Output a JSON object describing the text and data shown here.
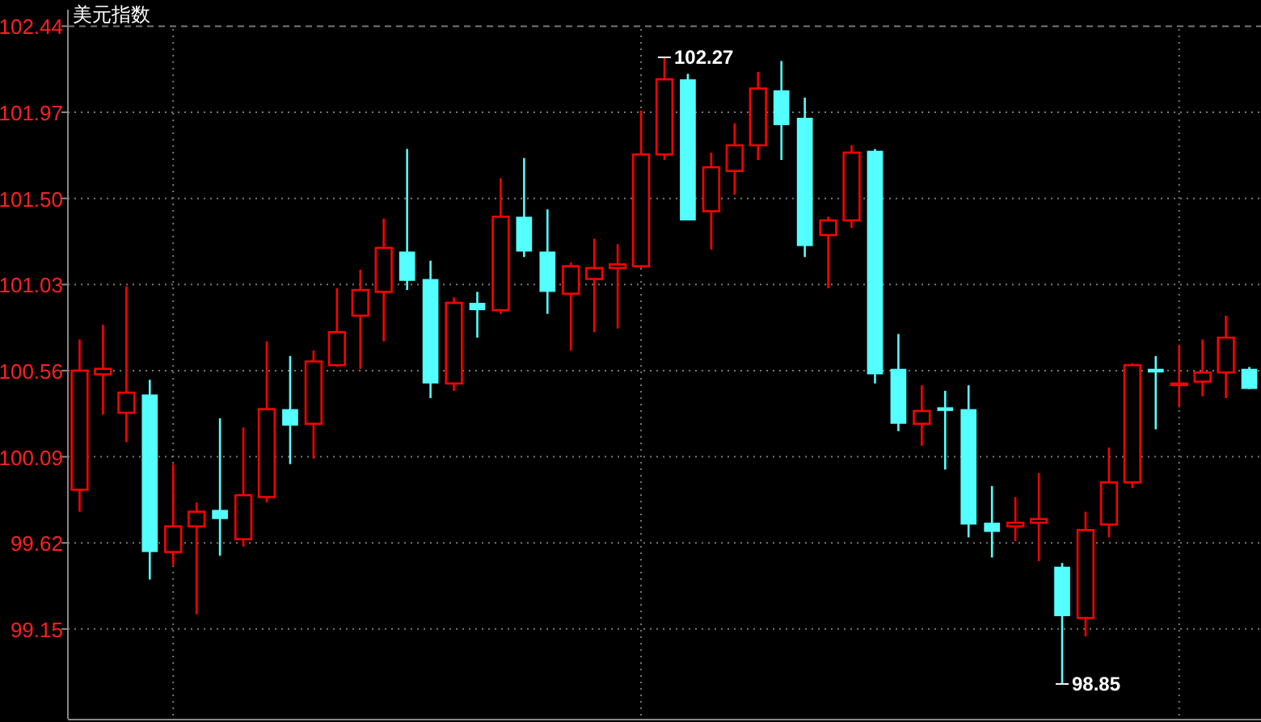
{
  "chart_data": {
    "type": "candlestick",
    "title": "美元指数",
    "categories": [
      null,
      null,
      null,
      null,
      null,
      null,
      null,
      null,
      null,
      null,
      null,
      null,
      null,
      null,
      null,
      null,
      null,
      null,
      null,
      null,
      null,
      null,
      null,
      null,
      null,
      null,
      null,
      null,
      null,
      null,
      null,
      null,
      null,
      null,
      null,
      null,
      null,
      null,
      null,
      null,
      null,
      null,
      null,
      null,
      null,
      null,
      null,
      null,
      null,
      null,
      null
    ],
    "ohlc": [
      [
        99.91,
        100.73,
        99.79,
        100.56
      ],
      [
        100.54,
        100.81,
        100.32,
        100.57
      ],
      [
        100.33,
        101.02,
        100.17,
        100.44
      ],
      [
        100.43,
        100.51,
        99.42,
        99.57
      ],
      [
        99.57,
        100.05,
        99.5,
        99.71
      ],
      [
        99.71,
        99.84,
        99.23,
        99.79
      ],
      [
        99.8,
        100.3,
        99.55,
        99.75
      ],
      [
        99.64,
        100.25,
        99.6,
        99.88
      ],
      [
        99.87,
        100.72,
        99.84,
        100.35
      ],
      [
        100.35,
        100.64,
        100.05,
        100.26
      ],
      [
        100.27,
        100.67,
        100.08,
        100.61
      ],
      [
        100.59,
        101.01,
        100.58,
        100.77
      ],
      [
        100.86,
        101.11,
        100.57,
        101.0
      ],
      [
        100.99,
        101.39,
        100.72,
        101.23
      ],
      [
        101.21,
        101.77,
        101.0,
        101.05
      ],
      [
        101.06,
        101.16,
        100.41,
        100.49
      ],
      [
        100.49,
        100.96,
        100.45,
        100.93
      ],
      [
        100.93,
        100.99,
        100.74,
        100.89
      ],
      [
        100.89,
        101.61,
        100.87,
        101.4
      ],
      [
        101.4,
        101.72,
        101.18,
        101.21
      ],
      [
        101.21,
        101.44,
        100.87,
        100.99
      ],
      [
        100.98,
        101.15,
        100.67,
        101.13
      ],
      [
        101.06,
        101.28,
        100.77,
        101.12
      ],
      [
        101.12,
        101.25,
        100.79,
        101.14
      ],
      [
        101.13,
        101.98,
        101.12,
        101.74
      ],
      [
        101.74,
        102.27,
        101.71,
        102.15
      ],
      [
        102.15,
        102.18,
        101.38,
        101.38
      ],
      [
        101.43,
        101.75,
        101.22,
        101.67
      ],
      [
        101.65,
        101.91,
        101.52,
        101.79
      ],
      [
        101.79,
        102.19,
        101.71,
        102.1
      ],
      [
        102.09,
        102.25,
        101.71,
        101.9
      ],
      [
        101.94,
        102.05,
        101.18,
        101.24
      ],
      [
        101.3,
        101.4,
        101.01,
        101.38
      ],
      [
        101.38,
        101.79,
        101.34,
        101.75
      ],
      [
        101.76,
        101.77,
        100.49,
        100.54
      ],
      [
        100.57,
        100.76,
        100.23,
        100.27
      ],
      [
        100.27,
        100.48,
        100.15,
        100.34
      ],
      [
        100.36,
        100.45,
        100.02,
        100.34
      ],
      [
        100.35,
        100.48,
        99.65,
        99.72
      ],
      [
        99.73,
        99.93,
        99.54,
        99.68
      ],
      [
        99.71,
        99.87,
        99.63,
        99.73
      ],
      [
        99.73,
        100.0,
        99.52,
        99.75
      ],
      [
        99.49,
        99.51,
        98.85,
        99.22
      ],
      [
        99.21,
        99.79,
        99.11,
        99.69
      ],
      [
        99.72,
        100.14,
        99.65,
        99.95
      ],
      [
        99.95,
        100.6,
        99.92,
        100.59
      ],
      [
        100.57,
        100.64,
        100.24,
        100.55
      ],
      [
        100.49,
        100.7,
        100.36,
        100.49
      ],
      [
        100.5,
        100.73,
        100.42,
        100.55
      ],
      [
        100.55,
        100.86,
        100.41,
        100.74
      ],
      [
        100.57,
        100.58,
        100.46,
        100.46
      ]
    ],
    "colors": [
      "#ff0000",
      "#ff0000",
      "#ff0000",
      "#54ffff",
      "#ff0000",
      "#ff0000",
      "#54ffff",
      "#ff0000",
      "#ff0000",
      "#54ffff",
      "#ff0000",
      "#ff0000",
      "#ff0000",
      "#ff0000",
      "#54ffff",
      "#54ffff",
      "#ff0000",
      "#54ffff",
      "#ff0000",
      "#54ffff",
      "#54ffff",
      "#ff0000",
      "#ff0000",
      "#ff0000",
      "#ff0000",
      "#ff0000",
      "#54ffff",
      "#ff0000",
      "#ff0000",
      "#ff0000",
      "#54ffff",
      "#54ffff",
      "#ff0000",
      "#ff0000",
      "#54ffff",
      "#54ffff",
      "#ff0000",
      "#54ffff",
      "#54ffff",
      "#54ffff",
      "#ff0000",
      "#ff0000",
      "#54ffff",
      "#ff0000",
      "#ff0000",
      "#ff0000",
      "#54ffff",
      "#ff0000",
      "#ff0000",
      "#ff0000",
      "#54ffff"
    ],
    "ylim": [
      98.66,
      102.53
    ],
    "yticks": [
      99.15,
      99.62,
      100.09,
      100.56,
      101.03,
      {
        "value": 101.5,
        "label": "101.50"
      },
      101.97,
      102.44
    ],
    "grid": true,
    "annotations": [
      "102.27",
      "98.85"
    ]
  }
}
